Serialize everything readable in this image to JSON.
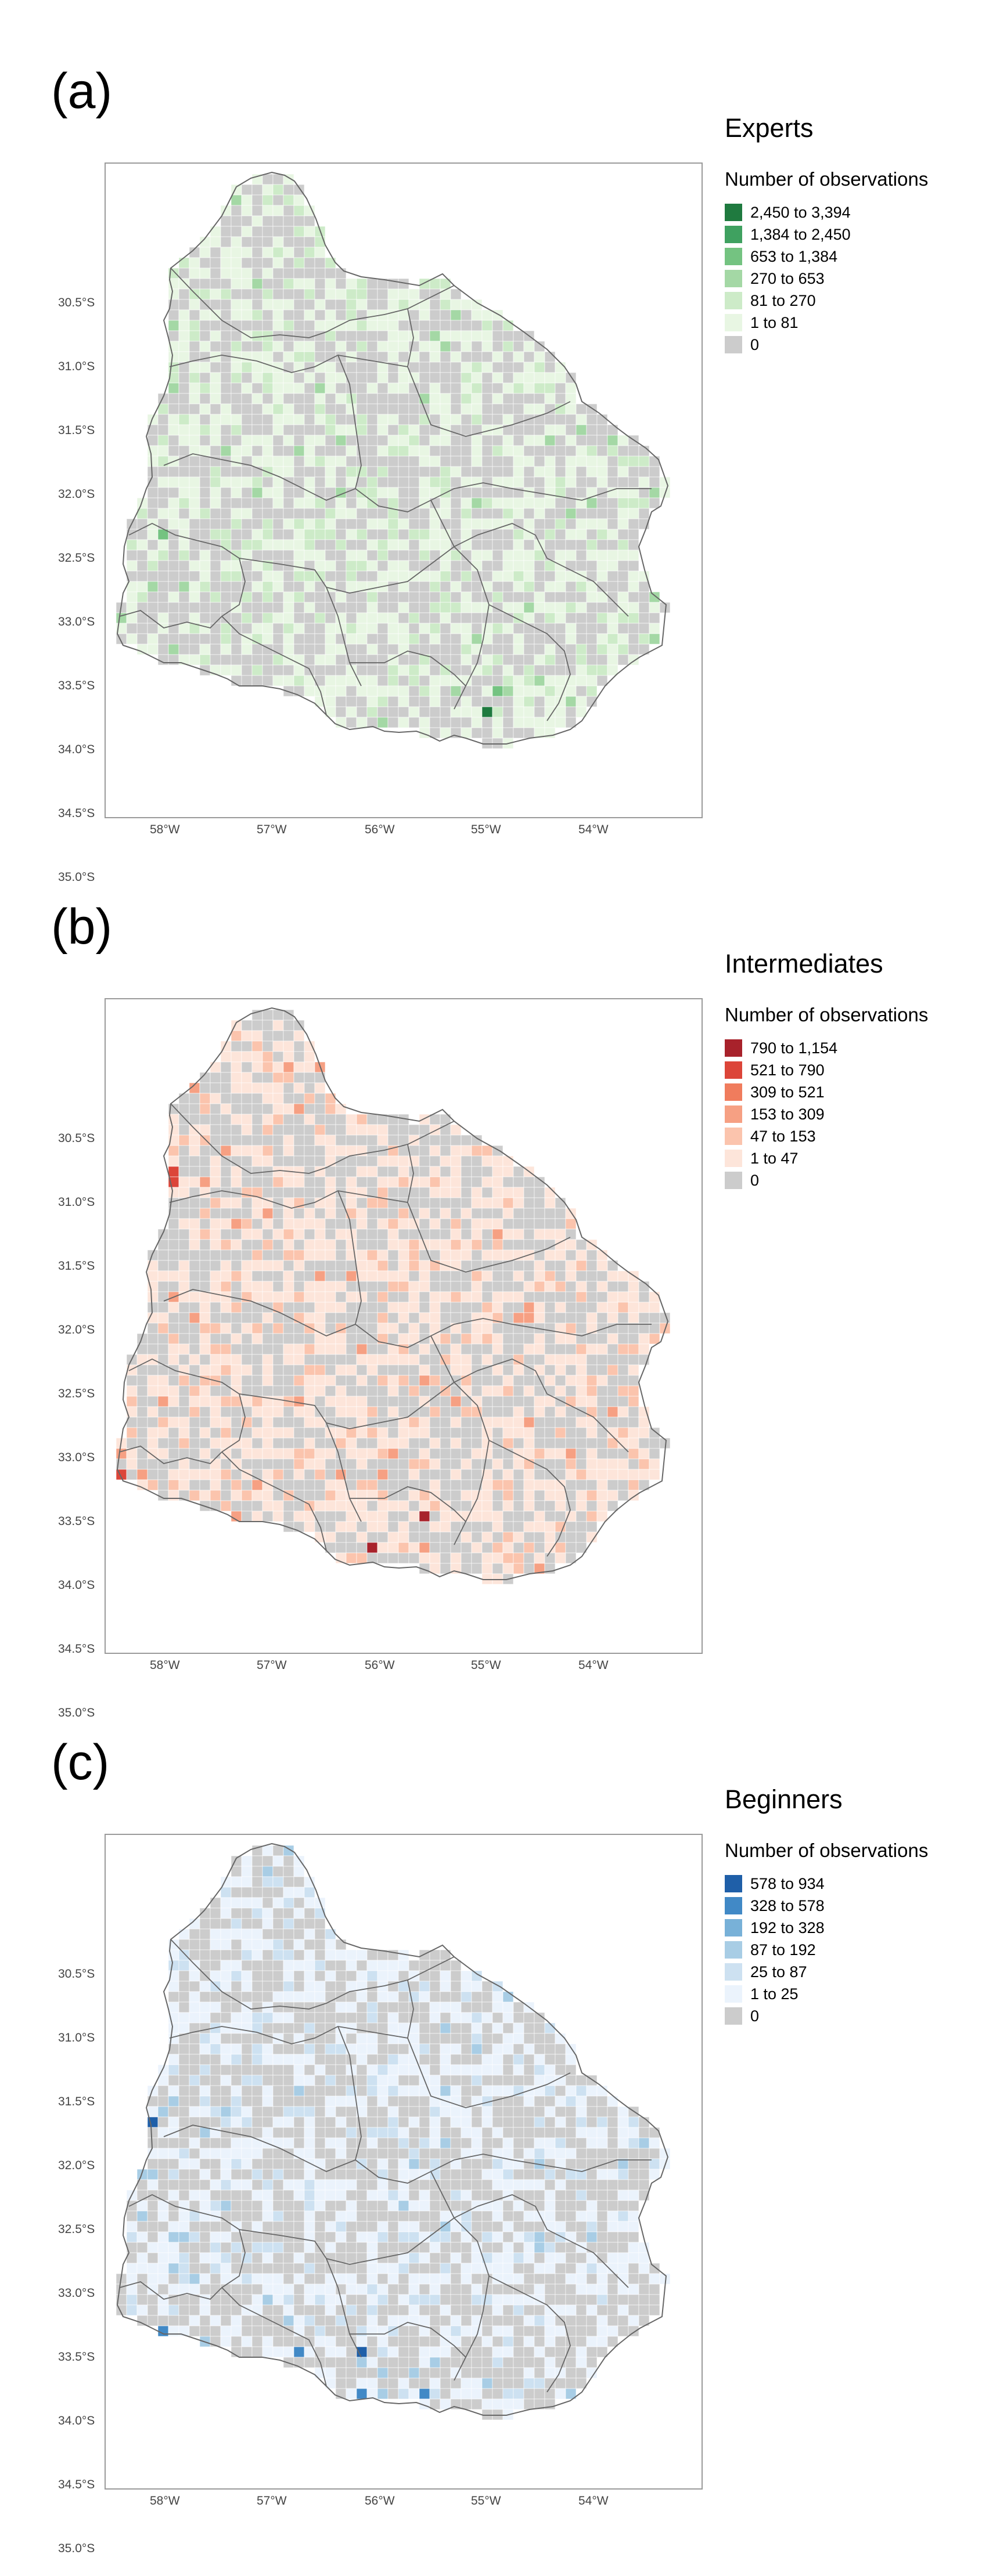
{
  "y_ticks": [
    "30.5°S",
    "31.0°S",
    "31.5°S",
    "32.0°S",
    "32.5°S",
    "33.0°S",
    "33.5°S",
    "34.0°S",
    "34.5°S",
    "35.0°S"
  ],
  "x_ticks": [
    "58°W",
    "57°W",
    "56°W",
    "55°W",
    "54°W"
  ],
  "panels": [
    {
      "label": "(a)",
      "group": "Experts",
      "legend_title": "Number of observations",
      "bins": [
        {
          "label": "2,450 to 3,394",
          "color": "#1f7a3f"
        },
        {
          "label": "1,384 to 2,450",
          "color": "#3fa160"
        },
        {
          "label": "653 to 1,384",
          "color": "#74c381"
        },
        {
          "label": "270 to 653",
          "color": "#a4d8a5"
        },
        {
          "label": "81 to 270",
          "color": "#cdebc8"
        },
        {
          "label": "1 to 81",
          "color": "#e8f6e3"
        },
        {
          "label": "0",
          "color": "#cccccc"
        }
      ]
    },
    {
      "label": "(b)",
      "group": "Intermediates",
      "legend_title": "Number of observations",
      "bins": [
        {
          "label": "790 to 1,154",
          "color": "#a8222b"
        },
        {
          "label": "521 to 790",
          "color": "#dc4539"
        },
        {
          "label": "309 to 521",
          "color": "#f07c5d"
        },
        {
          "label": "153 to 309",
          "color": "#f6a083"
        },
        {
          "label": "47 to 153",
          "color": "#fbc4ad"
        },
        {
          "label": "1 to 47",
          "color": "#fde5da"
        },
        {
          "label": "0",
          "color": "#cccccc"
        }
      ]
    },
    {
      "label": "(c)",
      "group": "Beginners",
      "legend_title": "Number of observations",
      "bins": [
        {
          "label": "578 to 934",
          "color": "#1f5fa8"
        },
        {
          "label": "328 to 578",
          "color": "#4189c6"
        },
        {
          "label": "192 to 328",
          "color": "#78b1d8"
        },
        {
          "label": "87 to 192",
          "color": "#a8cde5"
        },
        {
          "label": "25 to 87",
          "color": "#cde1f1"
        },
        {
          "label": "1 to 25",
          "color": "#ebf3fc"
        },
        {
          "label": "0",
          "color": "#cccccc"
        }
      ]
    }
  ]
}
